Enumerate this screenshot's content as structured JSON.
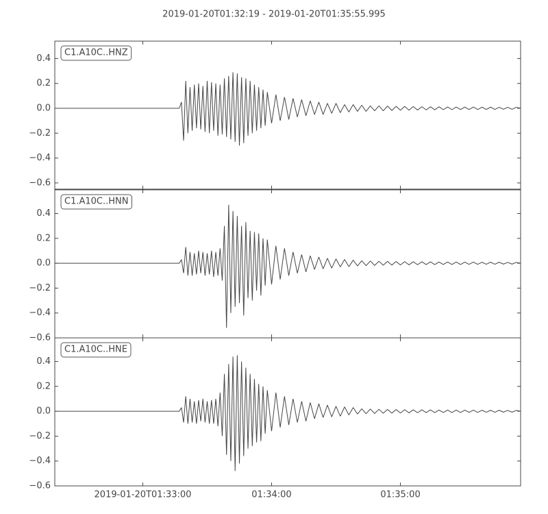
{
  "title": "2019-01-20T01:32:19  -  2019-01-20T01:35:55.995",
  "chart_data": [
    {
      "type": "line",
      "label": "C1.A10C..HNZ",
      "color": "#444444",
      "xlim": [
        0,
        216.995
      ],
      "ylim": [
        -0.65,
        0.54
      ],
      "yticks": [
        0.4,
        0.2,
        {
          "value": 0,
          "label": "0.0"
        },
        {
          "value": -0.2,
          "label": "−0.2"
        },
        {
          "value": -0.4,
          "label": "−0.4"
        },
        {
          "value": -0.6,
          "label": "−0.6"
        }
      ],
      "x": [
        0,
        58,
        59,
        60,
        61,
        62,
        63,
        64,
        65,
        66,
        67,
        68,
        69,
        70,
        71,
        72,
        73,
        74,
        75,
        76,
        77,
        78,
        79,
        80,
        81,
        82,
        83,
        84,
        85,
        86,
        87,
        88,
        89,
        90,
        91,
        92,
        93,
        94,
        95,
        96,
        97,
        98,
        99,
        101,
        103,
        105,
        107,
        109,
        111,
        113,
        115,
        117,
        119,
        121,
        123,
        125,
        127,
        129,
        131,
        133,
        135,
        137,
        139,
        141,
        143,
        145,
        147,
        149,
        151,
        153,
        155,
        157,
        159,
        161,
        163,
        165,
        167,
        169,
        171,
        173,
        175,
        177,
        179,
        181,
        183,
        185,
        187,
        189,
        191,
        193,
        195,
        197,
        199,
        201,
        203,
        205,
        207,
        209,
        211,
        213,
        215,
        216.995
      ],
      "values": [
        0,
        0,
        0.05,
        -0.26,
        0.22,
        -0.2,
        0.17,
        -0.18,
        0.19,
        -0.16,
        0.2,
        -0.17,
        0.18,
        -0.19,
        0.22,
        -0.2,
        0.21,
        -0.18,
        0.2,
        -0.22,
        0.19,
        -0.21,
        0.24,
        -0.23,
        0.26,
        -0.25,
        0.29,
        -0.27,
        0.28,
        -0.3,
        0.25,
        -0.28,
        0.24,
        -0.22,
        0.22,
        -0.2,
        0.19,
        -0.18,
        0.17,
        -0.16,
        0.15,
        -0.14,
        0.13,
        -0.12,
        0.11,
        -0.1,
        0.09,
        -0.09,
        0.08,
        -0.07,
        0.07,
        -0.06,
        0.06,
        -0.05,
        0.05,
        -0.05,
        0.04,
        -0.04,
        0.04,
        -0.035,
        0.03,
        -0.03,
        0.03,
        -0.025,
        0.025,
        -0.025,
        0.02,
        -0.02,
        0.02,
        -0.02,
        0.018,
        -0.018,
        0.016,
        -0.016,
        0.015,
        -0.015,
        0.014,
        -0.014,
        0.013,
        -0.013,
        0.012,
        -0.012,
        0.012,
        -0.011,
        0.011,
        -0.011,
        0.01,
        -0.01,
        0.01,
        -0.01,
        0.01,
        -0.01,
        0.009,
        -0.009,
        0.009,
        -0.009,
        0.008,
        -0.008,
        0.008,
        -0.008,
        0.008,
        0
      ]
    },
    {
      "type": "line",
      "label": "C1.A10C..HNN",
      "color": "#444444",
      "xlim": [
        0,
        216.995
      ],
      "ylim": [
        -0.6,
        0.59
      ],
      "yticks": [
        0.4,
        0.2,
        {
          "value": 0,
          "label": "0.0"
        },
        {
          "value": -0.2,
          "label": "−0.2"
        },
        {
          "value": -0.4,
          "label": "−0.4"
        },
        {
          "value": -0.6,
          "label": "−0.6"
        }
      ],
      "x": [
        0,
        58,
        59,
        60,
        61,
        62,
        63,
        64,
        65,
        66,
        67,
        68,
        69,
        70,
        71,
        72,
        73,
        74,
        75,
        76,
        77,
        78,
        79,
        80,
        81,
        82,
        83,
        84,
        85,
        86,
        87,
        88,
        89,
        90,
        91,
        92,
        93,
        94,
        95,
        96,
        97,
        98,
        99,
        101,
        103,
        105,
        107,
        109,
        111,
        113,
        115,
        117,
        119,
        121,
        123,
        125,
        127,
        129,
        131,
        133,
        135,
        137,
        139,
        141,
        143,
        145,
        147,
        149,
        151,
        153,
        155,
        157,
        159,
        161,
        163,
        165,
        167,
        169,
        171,
        173,
        175,
        177,
        179,
        181,
        183,
        185,
        187,
        189,
        191,
        193,
        195,
        197,
        199,
        201,
        203,
        205,
        207,
        209,
        211,
        213,
        215,
        216.995
      ],
      "values": [
        0,
        0,
        0.03,
        -0.08,
        0.13,
        -0.1,
        0.09,
        -0.1,
        0.08,
        -0.09,
        0.1,
        -0.08,
        0.09,
        -0.1,
        0.08,
        -0.09,
        0.1,
        -0.11,
        0.09,
        -0.1,
        0.12,
        -0.14,
        0.3,
        -0.52,
        0.47,
        -0.4,
        0.42,
        -0.35,
        0.38,
        -0.32,
        0.3,
        -0.42,
        0.33,
        -0.28,
        0.26,
        -0.3,
        0.25,
        -0.22,
        0.24,
        -0.26,
        0.2,
        -0.18,
        0.19,
        -0.17,
        0.14,
        -0.13,
        0.12,
        -0.1,
        0.09,
        -0.08,
        0.07,
        -0.07,
        0.06,
        -0.05,
        0.05,
        -0.045,
        0.04,
        -0.04,
        0.035,
        -0.03,
        0.03,
        -0.028,
        0.025,
        -0.022,
        0.02,
        -0.02,
        0.018,
        -0.018,
        0.016,
        -0.016,
        0.015,
        -0.015,
        0.014,
        -0.014,
        0.013,
        -0.013,
        0.012,
        -0.012,
        0.012,
        -0.011,
        0.011,
        -0.011,
        0.01,
        -0.01,
        0.01,
        -0.01,
        0.01,
        -0.01,
        0.009,
        -0.009,
        0.009,
        -0.009,
        0.008,
        -0.008,
        0.008,
        -0.008,
        0.008,
        -0.007,
        0.007,
        -0.007,
        0.007,
        0
      ]
    },
    {
      "type": "line",
      "label": "C1.A10C..HNE",
      "color": "#444444",
      "xlim": [
        0,
        216.995
      ],
      "ylim": [
        -0.6,
        0.59
      ],
      "yticks": [
        0.4,
        0.2,
        {
          "value": 0,
          "label": "0.0"
        },
        {
          "value": -0.2,
          "label": "−0.2"
        },
        {
          "value": -0.4,
          "label": "−0.4"
        },
        {
          "value": -0.6,
          "label": "−0.6"
        }
      ],
      "xticks": [
        {
          "value": 41,
          "label": "2019-01-20T01:33:00"
        },
        {
          "value": 101,
          "label": "01:34:00"
        },
        {
          "value": 161,
          "label": "01:35:00"
        }
      ],
      "x": [
        0,
        58,
        59,
        60,
        61,
        62,
        63,
        64,
        65,
        66,
        67,
        68,
        69,
        70,
        71,
        72,
        73,
        74,
        75,
        76,
        77,
        78,
        79,
        80,
        81,
        82,
        83,
        84,
        85,
        86,
        87,
        88,
        89,
        90,
        91,
        92,
        93,
        94,
        95,
        96,
        97,
        98,
        99,
        101,
        103,
        105,
        107,
        109,
        111,
        113,
        115,
        117,
        119,
        121,
        123,
        125,
        127,
        129,
        131,
        133,
        135,
        137,
        139,
        141,
        143,
        145,
        147,
        149,
        151,
        153,
        155,
        157,
        159,
        161,
        163,
        165,
        167,
        169,
        171,
        173,
        175,
        177,
        179,
        181,
        183,
        185,
        187,
        189,
        191,
        193,
        195,
        197,
        199,
        201,
        203,
        205,
        207,
        209,
        211,
        213,
        215,
        216.995
      ],
      "values": [
        0,
        0,
        0.03,
        -0.09,
        0.12,
        -0.1,
        0.1,
        -0.09,
        0.08,
        -0.1,
        0.09,
        -0.08,
        0.1,
        -0.09,
        0.08,
        -0.1,
        0.09,
        -0.1,
        0.1,
        -0.12,
        0.15,
        -0.2,
        0.3,
        -0.35,
        0.38,
        -0.4,
        0.44,
        -0.48,
        0.45,
        -0.42,
        0.4,
        -0.36,
        0.35,
        -0.3,
        0.3,
        -0.28,
        0.26,
        -0.25,
        0.22,
        -0.24,
        0.2,
        -0.18,
        0.17,
        -0.16,
        0.15,
        -0.13,
        0.12,
        -0.11,
        0.1,
        -0.09,
        0.08,
        -0.08,
        0.07,
        -0.06,
        0.06,
        -0.05,
        0.05,
        -0.045,
        0.04,
        -0.04,
        0.035,
        -0.03,
        0.03,
        -0.022,
        0.02,
        -0.02,
        0.018,
        -0.018,
        0.016,
        -0.016,
        0.015,
        -0.015,
        0.014,
        -0.014,
        0.013,
        -0.013,
        0.012,
        -0.012,
        0.012,
        -0.011,
        0.011,
        -0.011,
        0.01,
        -0.01,
        0.01,
        -0.01,
        0.01,
        -0.01,
        0.009,
        -0.009,
        0.009,
        -0.009,
        0.008,
        -0.008,
        0.008,
        -0.008,
        0.008,
        -0.007,
        0.007,
        -0.007,
        0.007,
        0
      ]
    }
  ]
}
